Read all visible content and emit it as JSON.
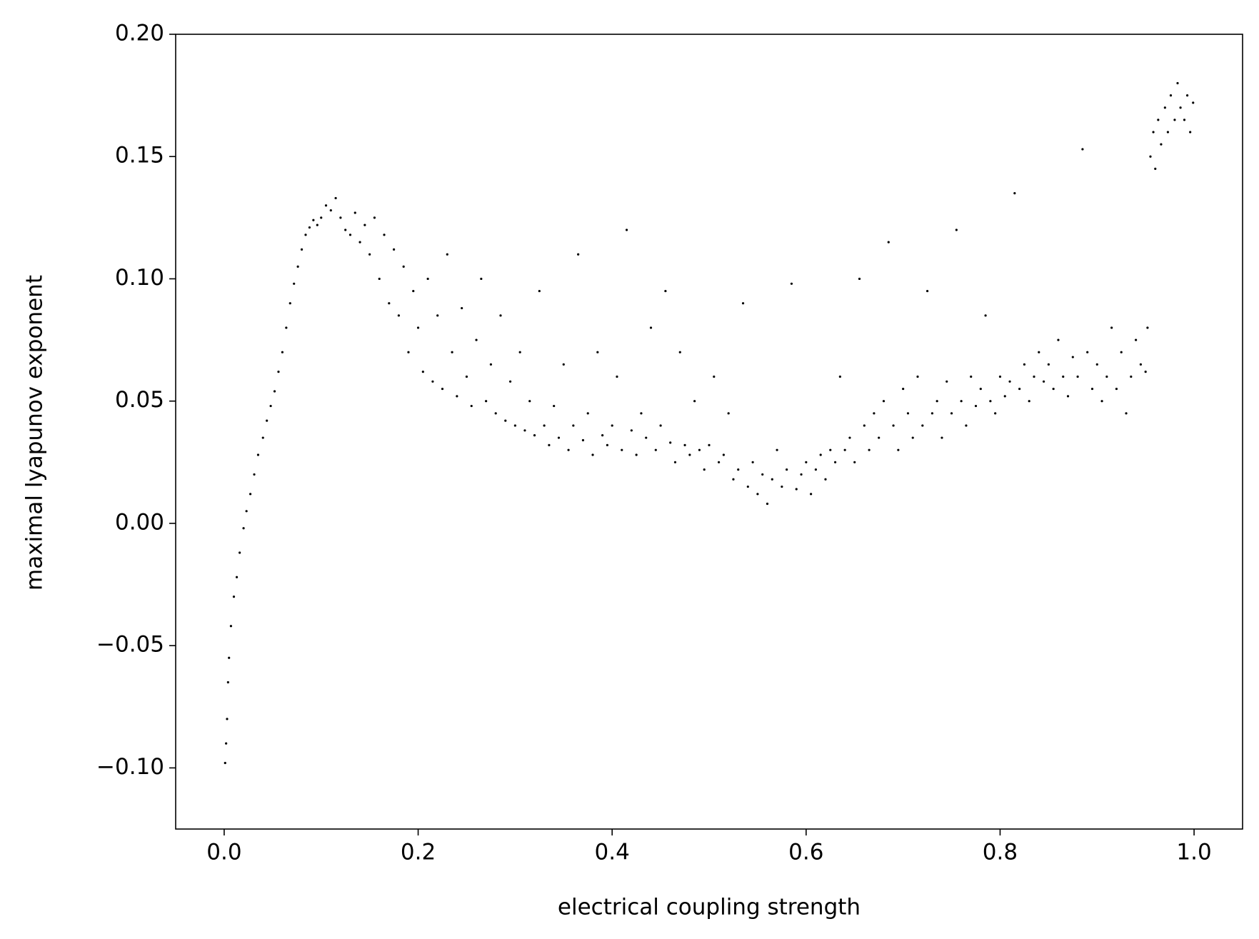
{
  "chart_data": {
    "type": "scatter",
    "xlabel": "electrical coupling strength",
    "ylabel": "maximal lyapunov exponent",
    "color": "#000000",
    "xlim": [
      -0.05,
      1.05
    ],
    "ylim": [
      -0.125,
      0.2
    ],
    "xticks": [
      {
        "value": 0,
        "label": "0.0"
      },
      {
        "value": 0.2,
        "label": "0.2"
      },
      {
        "value": 0.4,
        "label": "0.4"
      },
      {
        "value": 0.6,
        "label": "0.6"
      },
      {
        "value": 0.8,
        "label": "0.8"
      },
      {
        "value": 1,
        "label": "1.0"
      }
    ],
    "yticks": [
      {
        "value": -0.1,
        "label": "−0.10"
      },
      {
        "value": -0.05,
        "label": "−0.05"
      },
      {
        "value": 0,
        "label": "0.00"
      },
      {
        "value": 0.05,
        "label": "0.05"
      },
      {
        "value": 0.1,
        "label": "0.10"
      },
      {
        "value": 0.15,
        "label": "0.15"
      },
      {
        "value": 0.2,
        "label": "0.20"
      }
    ],
    "x": [
      0.001,
      0.002,
      0.003,
      0.004,
      0.005,
      0.007,
      0.01,
      0.013,
      0.016,
      0.02,
      0.023,
      0.027,
      0.031,
      0.035,
      0.04,
      0.044,
      0.048,
      0.052,
      0.056,
      0.06,
      0.064,
      0.068,
      0.072,
      0.076,
      0.08,
      0.084,
      0.088,
      0.092,
      0.096,
      0.1,
      0.105,
      0.11,
      0.115,
      0.12,
      0.125,
      0.13,
      0.135,
      0.14,
      0.145,
      0.15,
      0.155,
      0.16,
      0.165,
      0.17,
      0.175,
      0.18,
      0.185,
      0.19,
      0.195,
      0.2,
      0.205,
      0.21,
      0.215,
      0.22,
      0.225,
      0.23,
      0.235,
      0.24,
      0.245,
      0.25,
      0.255,
      0.26,
      0.265,
      0.27,
      0.275,
      0.28,
      0.285,
      0.29,
      0.295,
      0.3,
      0.305,
      0.31,
      0.315,
      0.32,
      0.325,
      0.33,
      0.335,
      0.34,
      0.345,
      0.35,
      0.355,
      0.36,
      0.365,
      0.37,
      0.375,
      0.38,
      0.385,
      0.39,
      0.395,
      0.4,
      0.405,
      0.41,
      0.415,
      0.42,
      0.425,
      0.43,
      0.435,
      0.44,
      0.445,
      0.45,
      0.455,
      0.46,
      0.465,
      0.47,
      0.475,
      0.48,
      0.485,
      0.49,
      0.495,
      0.5,
      0.505,
      0.51,
      0.515,
      0.52,
      0.525,
      0.53,
      0.535,
      0.54,
      0.545,
      0.55,
      0.555,
      0.56,
      0.565,
      0.57,
      0.575,
      0.58,
      0.585,
      0.59,
      0.595,
      0.6,
      0.605,
      0.61,
      0.615,
      0.62,
      0.625,
      0.63,
      0.635,
      0.64,
      0.645,
      0.65,
      0.655,
      0.66,
      0.665,
      0.67,
      0.675,
      0.68,
      0.685,
      0.69,
      0.695,
      0.7,
      0.705,
      0.71,
      0.715,
      0.72,
      0.725,
      0.73,
      0.735,
      0.74,
      0.745,
      0.75,
      0.755,
      0.76,
      0.765,
      0.77,
      0.775,
      0.78,
      0.785,
      0.79,
      0.795,
      0.8,
      0.805,
      0.81,
      0.815,
      0.82,
      0.825,
      0.83,
      0.835,
      0.84,
      0.845,
      0.85,
      0.855,
      0.86,
      0.865,
      0.87,
      0.875,
      0.88,
      0.885,
      0.89,
      0.895,
      0.9,
      0.905,
      0.91,
      0.915,
      0.92,
      0.925,
      0.93,
      0.935,
      0.94,
      0.945,
      0.95,
      0.952,
      0.955,
      0.958,
      0.96,
      0.963,
      0.966,
      0.97,
      0.973,
      0.976,
      0.98,
      0.983,
      0.986,
      0.99,
      0.993,
      0.996,
      0.999
    ],
    "values": [
      -0.098,
      -0.09,
      -0.08,
      -0.065,
      -0.055,
      -0.042,
      -0.03,
      -0.022,
      -0.012,
      -0.002,
      0.005,
      0.012,
      0.02,
      0.028,
      0.035,
      0.042,
      0.048,
      0.054,
      0.062,
      0.07,
      0.08,
      0.09,
      0.098,
      0.105,
      0.112,
      0.118,
      0.121,
      0.124,
      0.122,
      0.125,
      0.13,
      0.128,
      0.133,
      0.125,
      0.12,
      0.118,
      0.127,
      0.115,
      0.122,
      0.11,
      0.125,
      0.1,
      0.118,
      0.09,
      0.112,
      0.085,
      0.105,
      0.07,
      0.095,
      0.08,
      0.062,
      0.1,
      0.058,
      0.085,
      0.055,
      0.11,
      0.07,
      0.052,
      0.088,
      0.06,
      0.048,
      0.075,
      0.1,
      0.05,
      0.065,
      0.045,
      0.085,
      0.042,
      0.058,
      0.04,
      0.07,
      0.038,
      0.05,
      0.036,
      0.095,
      0.04,
      0.032,
      0.048,
      0.035,
      0.065,
      0.03,
      0.04,
      0.11,
      0.034,
      0.045,
      0.028,
      0.07,
      0.036,
      0.032,
      0.04,
      0.06,
      0.03,
      0.12,
      0.038,
      0.028,
      0.045,
      0.035,
      0.08,
      0.03,
      0.04,
      0.095,
      0.033,
      0.025,
      0.07,
      0.032,
      0.028,
      0.05,
      0.03,
      0.022,
      0.032,
      0.06,
      0.025,
      0.028,
      0.045,
      0.018,
      0.022,
      0.09,
      0.015,
      0.025,
      0.012,
      0.02,
      0.008,
      0.018,
      0.03,
      0.015,
      0.022,
      0.098,
      0.014,
      0.02,
      0.025,
      0.012,
      0.022,
      0.028,
      0.018,
      0.03,
      0.025,
      0.06,
      0.03,
      0.035,
      0.025,
      0.1,
      0.04,
      0.03,
      0.045,
      0.035,
      0.05,
      0.115,
      0.04,
      0.03,
      0.055,
      0.045,
      0.035,
      0.06,
      0.04,
      0.095,
      0.045,
      0.05,
      0.035,
      0.058,
      0.045,
      0.12,
      0.05,
      0.04,
      0.06,
      0.048,
      0.055,
      0.085,
      0.05,
      0.045,
      0.06,
      0.052,
      0.058,
      0.135,
      0.055,
      0.065,
      0.05,
      0.06,
      0.07,
      0.058,
      0.065,
      0.055,
      0.075,
      0.06,
      0.052,
      0.068,
      0.06,
      0.153,
      0.07,
      0.055,
      0.065,
      0.05,
      0.06,
      0.08,
      0.055,
      0.07,
      0.045,
      0.06,
      0.075,
      0.065,
      0.062,
      0.08,
      0.15,
      0.16,
      0.145,
      0.165,
      0.155,
      0.17,
      0.16,
      0.175,
      0.165,
      0.18,
      0.17,
      0.165,
      0.175,
      0.16,
      0.172
    ]
  }
}
